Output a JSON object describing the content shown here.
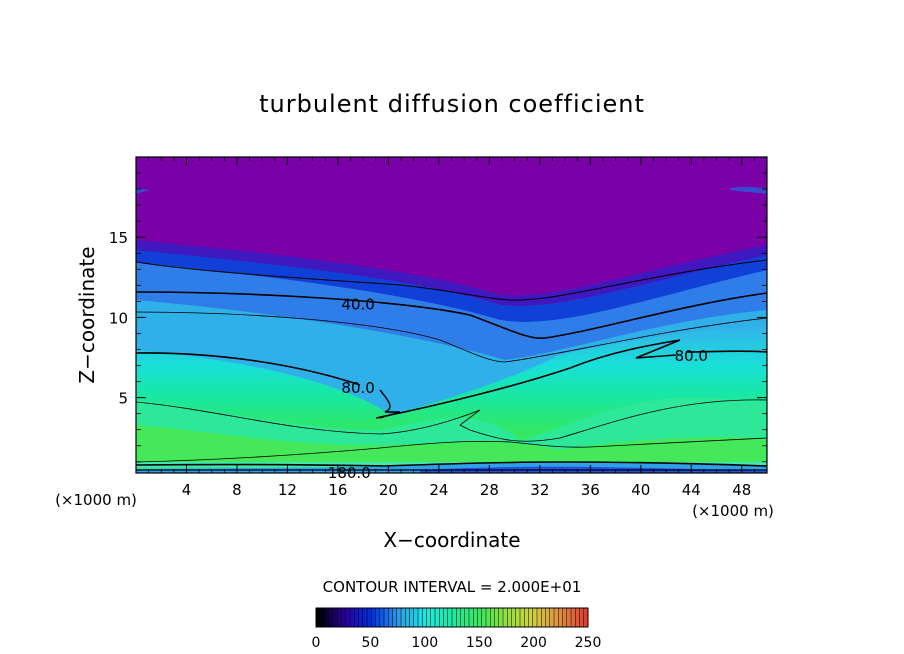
{
  "chart_data": {
    "type": "heatmap",
    "title": "turbulent diffusion coefficient",
    "xlabel": "X−coordinate",
    "ylabel": "Z−coordinate",
    "x_unit": "(×1000 m)",
    "y_unit": "(×1000 m)",
    "xlim": [
      0,
      50
    ],
    "ylim": [
      0.3,
      20
    ],
    "x_ticks": [
      4,
      8,
      12,
      16,
      20,
      24,
      28,
      32,
      36,
      40,
      44,
      48
    ],
    "y_ticks": [
      5,
      10,
      15
    ],
    "contour_interval": "CONTOUR INTERVAL = 2.000E+01",
    "contour_labels": [
      {
        "text": "40.0",
        "x": 17.6,
        "y": 10.8
      },
      {
        "text": "80.0",
        "x": 17.6,
        "y": 5.6
      },
      {
        "text": "80.0",
        "x": 44.0,
        "y": 7.6
      },
      {
        "text": "180.0",
        "x": 16.9,
        "y": 0.3
      }
    ],
    "colorbar": {
      "min": 0,
      "max": 250,
      "ticks": [
        0,
        50,
        100,
        150,
        200,
        250
      ],
      "colors": [
        "#000000",
        "#2a00a0",
        "#0030e0",
        "#2a9ae8",
        "#1ee8e0",
        "#20e8a0",
        "#38e860",
        "#90e040",
        "#d0d040",
        "#e09040",
        "#e04030"
      ]
    }
  }
}
